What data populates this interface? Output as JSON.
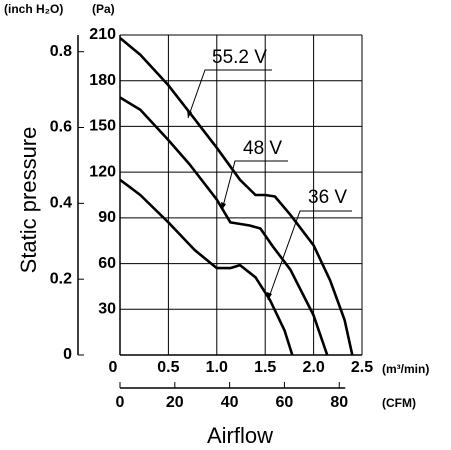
{
  "chart_data": {
    "type": "line",
    "y_label": "Static pressure",
    "x_label": "Airflow",
    "y_unit": "(Pa)",
    "y2_unit": "(inch H₂O)",
    "x_unit": "(m³/min)",
    "x2_unit": "(CFM)",
    "xlim": [
      0,
      2.5
    ],
    "xticks": [
      0,
      0.5,
      {
        "value": 1.0,
        "label": "1.0"
      },
      1.5,
      {
        "value": 2.0,
        "label": "2.0"
      },
      2.5
    ],
    "x2lim": [
      0,
      88.3
    ],
    "x2ticks": [
      0,
      20,
      40,
      60,
      80
    ],
    "ylim": [
      0,
      210
    ],
    "yticks": [
      30,
      60,
      90,
      120,
      150,
      180,
      210
    ],
    "y2lim": [
      0,
      0.844
    ],
    "y2ticks": [
      0,
      0.2,
      0.4,
      0.6,
      0.8
    ],
    "grid": true,
    "series": [
      {
        "name": "55.2 V",
        "color": "#000000",
        "x": [
          0,
          0.21,
          0.5,
          0.72,
          1.0,
          1.24,
          1.4,
          1.5,
          1.6,
          1.76,
          2.0,
          2.17,
          2.32,
          2.4
        ],
        "values": [
          208,
          197,
          177,
          159,
          136,
          115,
          105,
          105,
          104,
          92,
          72,
          49,
          23,
          0
        ]
      },
      {
        "name": "48 V",
        "color": "#000000",
        "x": [
          0,
          0.21,
          0.5,
          0.72,
          1.0,
          1.14,
          1.34,
          1.45,
          1.57,
          1.76,
          2.0,
          2.14
        ],
        "values": [
          169,
          161,
          141,
          125,
          102,
          87,
          85,
          83,
          72,
          56,
          26,
          0
        ]
      },
      {
        "name": "36 V",
        "color": "#000000",
        "x": [
          0,
          0.21,
          0.5,
          0.77,
          1.0,
          1.14,
          1.24,
          1.4,
          1.55,
          1.7,
          1.78
        ],
        "values": [
          115,
          105,
          87,
          69,
          57,
          57,
          59,
          51,
          36,
          16,
          0
        ]
      }
    ]
  }
}
